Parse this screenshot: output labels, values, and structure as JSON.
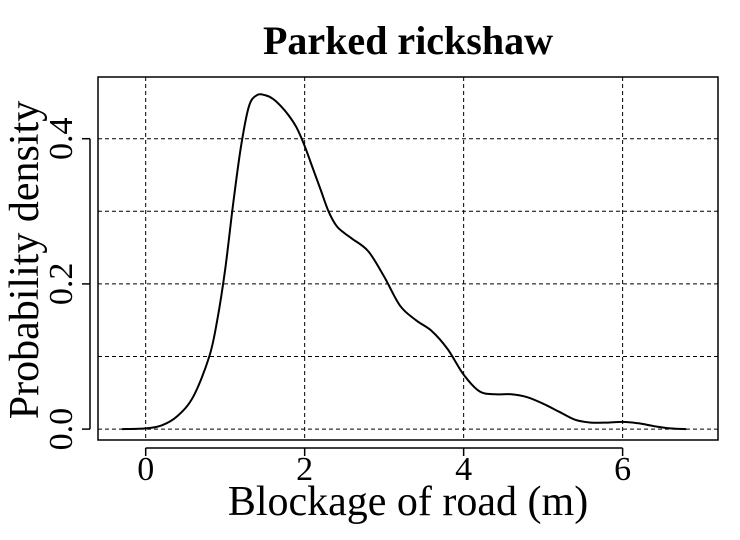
{
  "chart_data": {
    "type": "line",
    "title": "Parked rickshaw",
    "xlabel": "Blockage of road (m)",
    "ylabel": "Probability density",
    "xlim": [
      -0.6,
      7.2
    ],
    "ylim": [
      -0.015,
      0.485
    ],
    "x_ticks": [
      0,
      2,
      4,
      6
    ],
    "x_tick_labels": [
      "0",
      "2",
      "4",
      "6"
    ],
    "y_ticks": [
      0.0,
      0.2,
      0.4
    ],
    "y_tick_labels": [
      "0.0",
      "0.2",
      "0.4"
    ],
    "grid": true,
    "grid_x": [
      0,
      2,
      4,
      6
    ],
    "grid_y": [
      0.0,
      0.1,
      0.2,
      0.3,
      0.4
    ],
    "series": [
      {
        "x": [
          -0.3,
          0.0,
          0.2,
          0.4,
          0.6,
          0.8,
          0.9,
          1.0,
          1.1,
          1.2,
          1.3,
          1.4,
          1.5,
          1.6,
          1.7,
          1.8,
          1.9,
          2.0,
          2.1,
          2.2,
          2.3,
          2.4,
          2.5,
          2.6,
          2.8,
          3.0,
          3.2,
          3.4,
          3.6,
          3.8,
          4.0,
          4.2,
          4.4,
          4.6,
          4.8,
          5.0,
          5.2,
          5.4,
          5.6,
          5.8,
          6.0,
          6.2,
          6.4,
          6.6,
          6.8
        ],
        "y": [
          0.0,
          0.001,
          0.005,
          0.018,
          0.045,
          0.1,
          0.15,
          0.22,
          0.31,
          0.39,
          0.445,
          0.46,
          0.46,
          0.455,
          0.445,
          0.432,
          0.415,
          0.39,
          0.36,
          0.33,
          0.3,
          0.28,
          0.27,
          0.262,
          0.245,
          0.21,
          0.17,
          0.15,
          0.135,
          0.11,
          0.075,
          0.052,
          0.048,
          0.048,
          0.044,
          0.035,
          0.024,
          0.013,
          0.009,
          0.009,
          0.01,
          0.008,
          0.004,
          0.001,
          0.0
        ]
      }
    ]
  }
}
